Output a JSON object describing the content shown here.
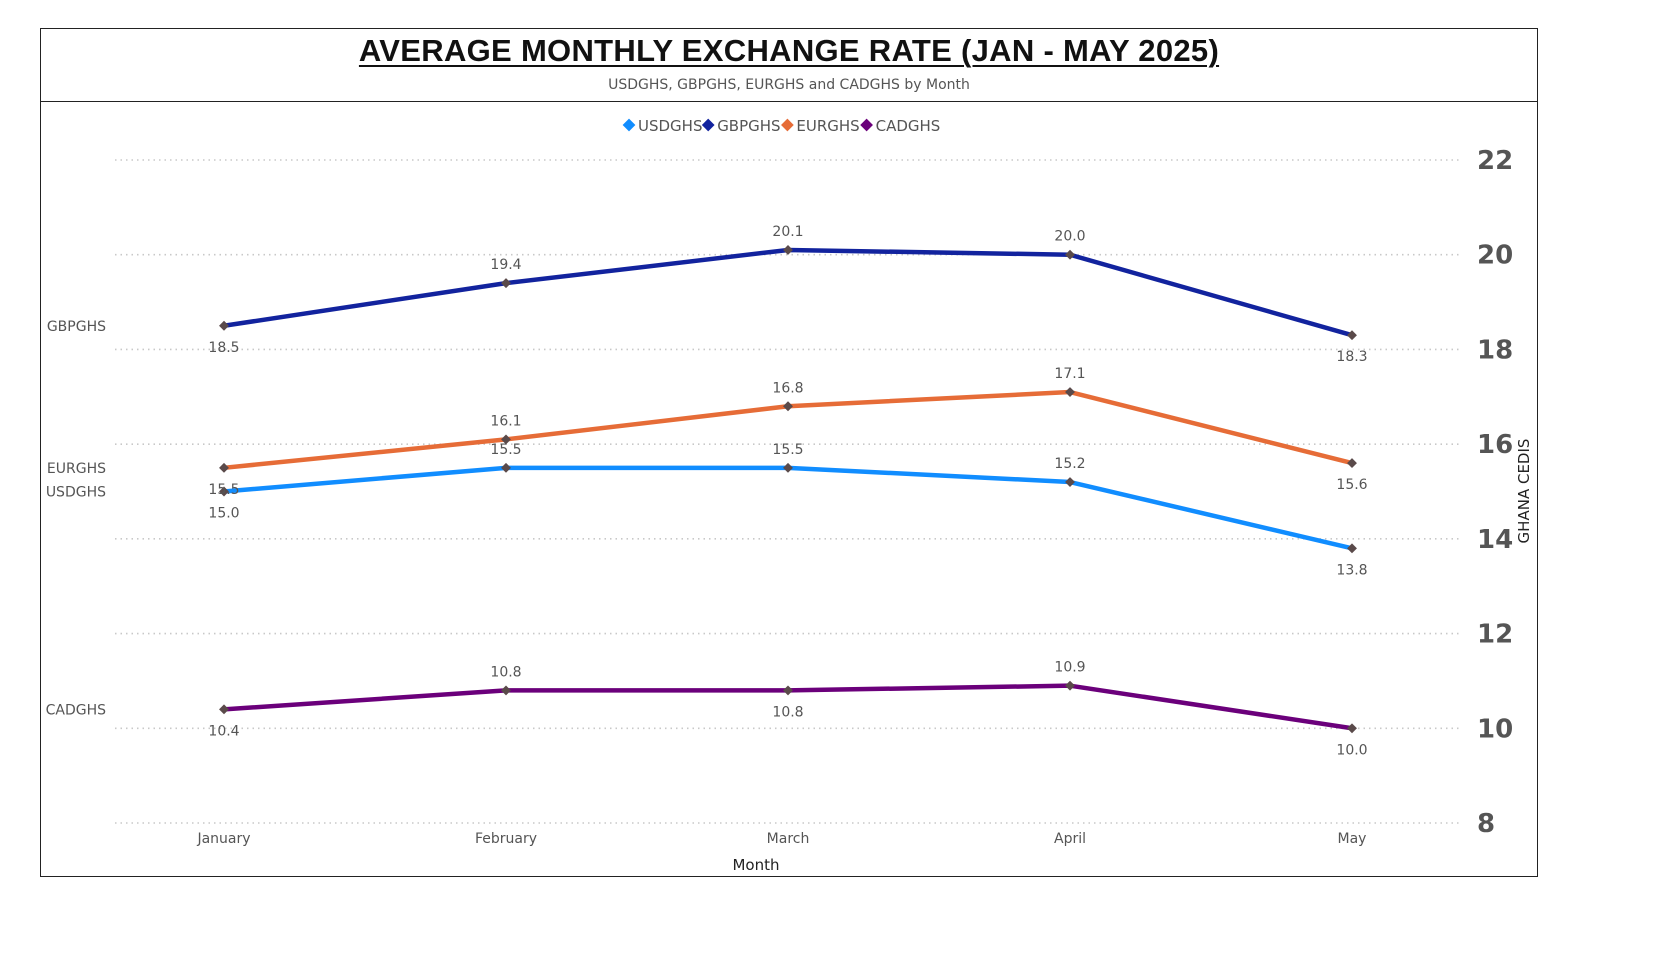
{
  "chart_data": {
    "type": "line",
    "title": "AVERAGE MONTHLY EXCHANGE RATE (JAN - MAY 2025)",
    "subtitle": "USDGHS, GBPGHS, EURGHS and CADGHS by Month",
    "xlabel": "Month",
    "ylabel": "GHANA CEDIS",
    "categories": [
      "January",
      "February",
      "March",
      "April",
      "May"
    ],
    "ylim": [
      8,
      22
    ],
    "yticks": [
      8,
      10,
      12,
      14,
      16,
      18,
      20,
      22
    ],
    "grid": true,
    "legend_position": "top-center",
    "series": [
      {
        "name": "USDGHS",
        "color": "#118DFF",
        "values": [
          15.0,
          15.5,
          15.5,
          15.2,
          13.8
        ],
        "labels": [
          "15.0",
          "15.5",
          "15.5",
          "15.2",
          "13.8"
        ]
      },
      {
        "name": "GBPGHS",
        "color": "#12239E",
        "values": [
          18.5,
          19.4,
          20.1,
          20.0,
          18.3
        ],
        "labels": [
          "18.5",
          "19.4",
          "20.1",
          "20.0",
          "18.3"
        ]
      },
      {
        "name": "EURGHS",
        "color": "#E66C37",
        "values": [
          15.5,
          16.1,
          16.8,
          17.1,
          15.6
        ],
        "labels": [
          "15.5",
          "16.1",
          "16.8",
          "17.1",
          "15.6"
        ]
      },
      {
        "name": "CADGHS",
        "color": "#6B007B",
        "values": [
          10.4,
          10.8,
          10.8,
          10.9,
          10.0
        ],
        "labels": [
          "10.4",
          "10.8",
          "10.8",
          "10.9",
          "10.0"
        ]
      }
    ]
  }
}
